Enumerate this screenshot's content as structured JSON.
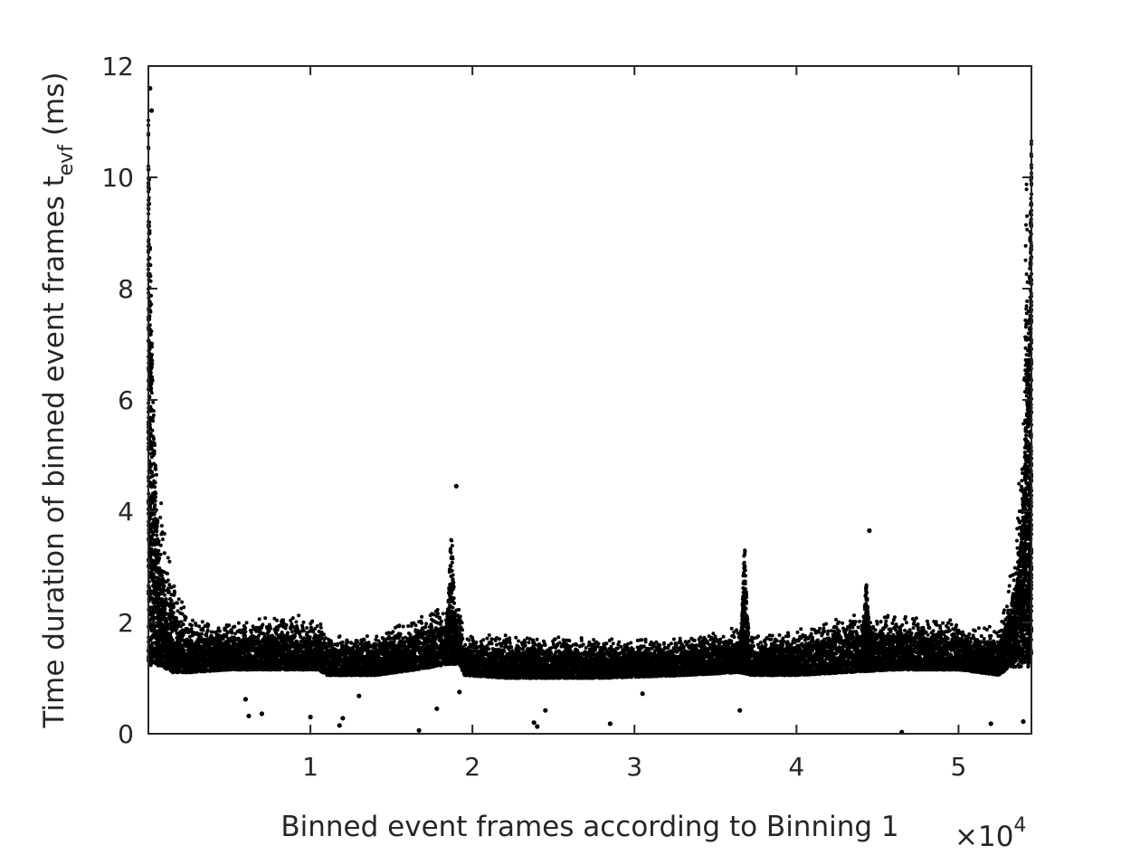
{
  "chart_data": {
    "type": "scatter",
    "xlabel": "Binned event frames according to Binning 1",
    "ylabel": {
      "main": "Time duration of binned event frames t",
      "subscript": "evf",
      "unit": " (ms)"
    },
    "x_exponent": {
      "base": "×10",
      "power": "4"
    },
    "xlim": [
      0,
      54500
    ],
    "ylim": [
      0,
      12
    ],
    "xticks": [
      10000,
      20000,
      30000,
      40000,
      50000
    ],
    "xtick_labels": [
      "1",
      "2",
      "3",
      "4",
      "5"
    ],
    "yticks": [
      0,
      2,
      4,
      6,
      8,
      10,
      12
    ],
    "ytick_labels": [
      "0",
      "2",
      "4",
      "6",
      "8",
      "10",
      "12"
    ],
    "grid": false,
    "marker_color": "#000000",
    "baseline_profile": {
      "x": [
        0,
        300,
        1500,
        2500,
        5000,
        8000,
        10500,
        11000,
        14000,
        16500,
        18500,
        19200,
        19500,
        22000,
        28000,
        33000,
        36500,
        37200,
        40000,
        43000,
        46000,
        50000,
        52500,
        53500,
        54500
      ],
      "low": [
        1.2,
        1.3,
        1.1,
        1.1,
        1.15,
        1.15,
        1.15,
        1.05,
        1.05,
        1.15,
        1.25,
        1.25,
        1.05,
        1.0,
        1.0,
        1.05,
        1.1,
        1.05,
        1.05,
        1.1,
        1.15,
        1.15,
        1.05,
        1.3,
        2.8
      ],
      "high": [
        10.5,
        5.5,
        3.0,
        2.1,
        2.0,
        2.2,
        2.1,
        1.75,
        1.85,
        2.15,
        2.35,
        2.4,
        1.8,
        1.8,
        1.75,
        1.75,
        1.95,
        1.8,
        1.9,
        2.2,
        2.2,
        2.05,
        1.9,
        3.5,
        10.0
      ]
    },
    "spikes": [
      {
        "x": 18700,
        "width": 700,
        "peak": 3.6
      },
      {
        "x": 36800,
        "width": 500,
        "peak": 3.4
      },
      {
        "x": 44300,
        "width": 500,
        "peak": 2.7
      },
      {
        "x": 54200,
        "width": 500,
        "peak": 10.5
      }
    ],
    "outliers": [
      {
        "x": 6000,
        "y": 0.62
      },
      {
        "x": 6200,
        "y": 0.32
      },
      {
        "x": 7000,
        "y": 0.36
      },
      {
        "x": 10000,
        "y": 0.3
      },
      {
        "x": 11800,
        "y": 0.15
      },
      {
        "x": 12000,
        "y": 0.28
      },
      {
        "x": 13000,
        "y": 0.68
      },
      {
        "x": 16700,
        "y": 0.06
      },
      {
        "x": 17800,
        "y": 0.45
      },
      {
        "x": 19200,
        "y": 0.75
      },
      {
        "x": 23800,
        "y": 0.2
      },
      {
        "x": 24000,
        "y": 0.13
      },
      {
        "x": 24500,
        "y": 0.42
      },
      {
        "x": 28500,
        "y": 0.18
      },
      {
        "x": 30500,
        "y": 0.72
      },
      {
        "x": 36500,
        "y": 0.42
      },
      {
        "x": 46500,
        "y": 0.03
      },
      {
        "x": 52000,
        "y": 0.18
      },
      {
        "x": 54000,
        "y": 0.22
      },
      {
        "x": 19000,
        "y": 4.45
      },
      {
        "x": 44500,
        "y": 3.65
      },
      {
        "x": 100,
        "y": 11.6
      },
      {
        "x": 200,
        "y": 11.2
      }
    ]
  }
}
